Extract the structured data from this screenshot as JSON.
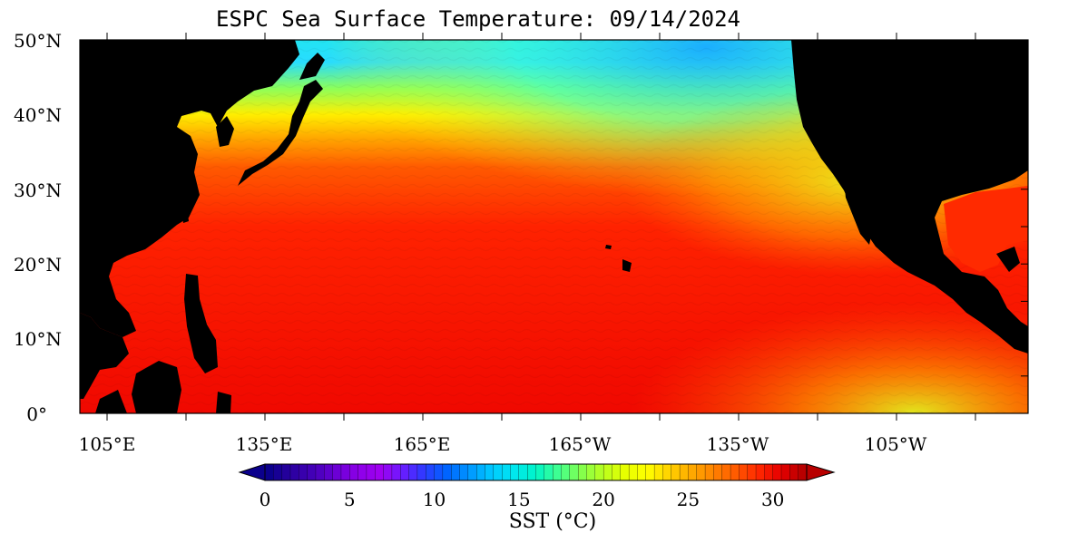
{
  "title": "ESPC Sea Surface Temperature: 09/14/2024",
  "y_axis": {
    "labels": [
      "50°N",
      "40°N",
      "30°N",
      "20°N",
      "10°N",
      "0°"
    ],
    "values": [
      50,
      40,
      30,
      20,
      10,
      0
    ]
  },
  "x_axis": {
    "labels": [
      "105°E",
      "135°E",
      "165°E",
      "165°W",
      "135°W",
      "105°W"
    ],
    "values": [
      105,
      135,
      165,
      195,
      225,
      255
    ]
  },
  "colorbar": {
    "tick_labels": [
      "0",
      "5",
      "10",
      "15",
      "20",
      "25",
      "30"
    ],
    "tick_values": [
      0,
      5,
      10,
      15,
      20,
      25,
      30
    ],
    "range": [
      0,
      32
    ],
    "label": "SST (°C)",
    "colors": [
      "#0b008c",
      "#2a00a0",
      "#4400b8",
      "#6a00d4",
      "#8c00e8",
      "#a000f0",
      "#6a1cff",
      "#2b3cff",
      "#0064ff",
      "#0096ff",
      "#00c8ff",
      "#00e6f0",
      "#00f5c8",
      "#40ff90",
      "#80ff50",
      "#b8ff20",
      "#e6ff00",
      "#ffff00",
      "#ffd200",
      "#ffaa00",
      "#ff8200",
      "#ff5a00",
      "#ff2800",
      "#e60000",
      "#b80000"
    ]
  },
  "map": {
    "land_color": "#000000",
    "sst_colors": {
      "cool": "#27e2f0",
      "cold": "#00b4ff",
      "mild": "#9cff3c",
      "warm_yellow": "#ffe600",
      "warm": "#ff9a00",
      "hot": "#ff4400",
      "hottest": "#f00a00"
    }
  }
}
